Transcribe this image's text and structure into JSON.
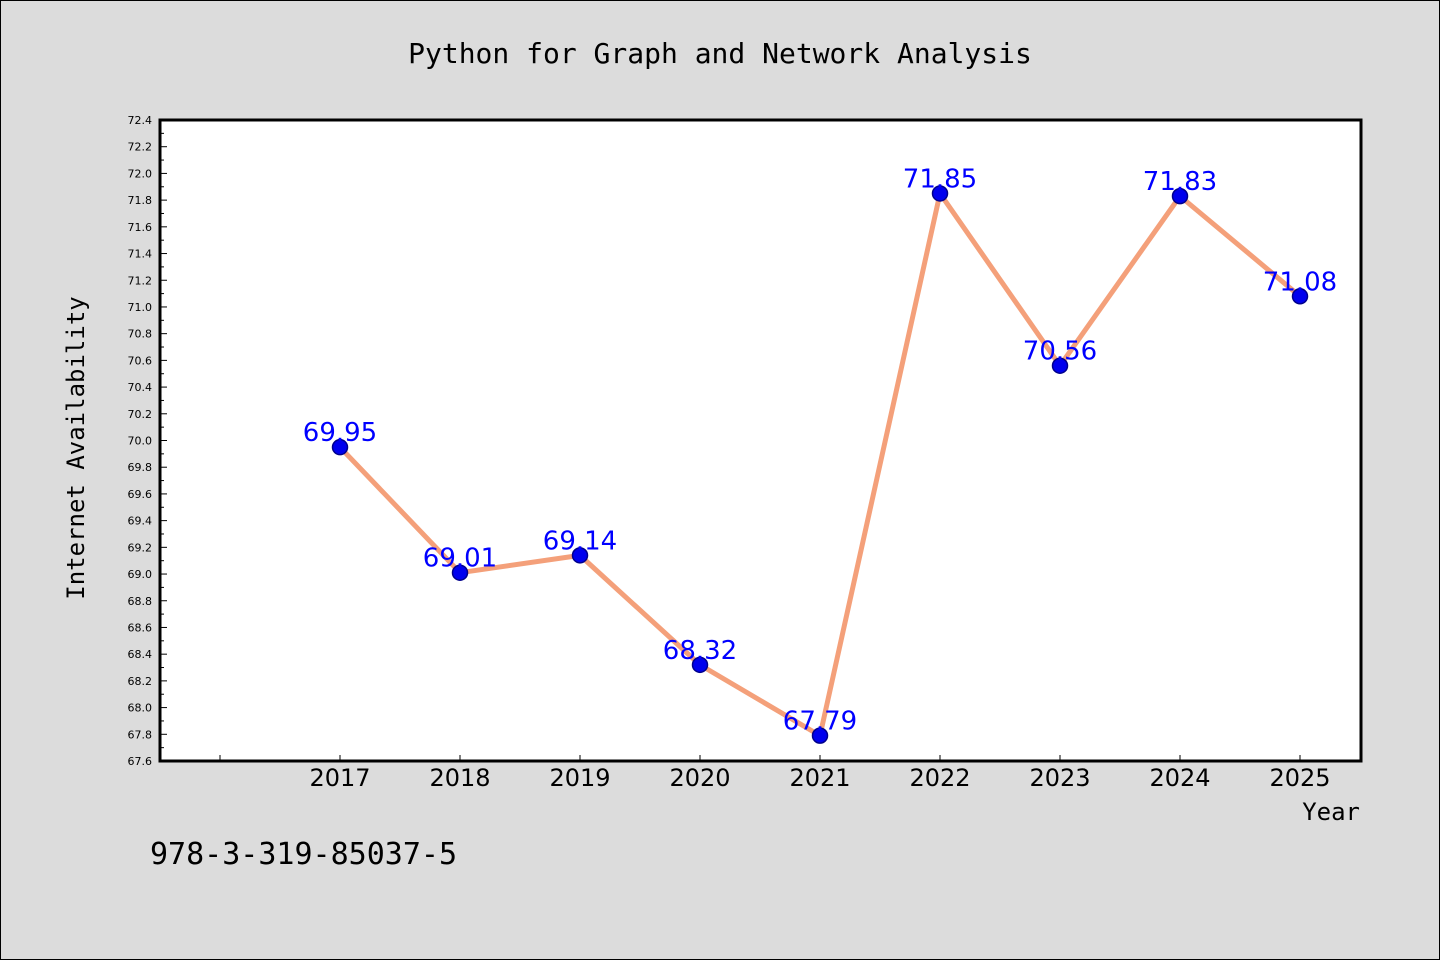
{
  "chart_data": {
    "type": "line",
    "title": "Python for Graph and Network Analysis",
    "xlabel": "Year",
    "ylabel": "Internet Availability",
    "categories": [
      "2017",
      "2018",
      "2019",
      "2020",
      "2021",
      "2022",
      "2023",
      "2024",
      "2025"
    ],
    "series": [
      {
        "values": [
          69.95,
          69.01,
          69.14,
          68.32,
          67.79,
          71.85,
          70.56,
          71.83,
          71.08
        ],
        "data_labels": [
          "69.95",
          "69.01",
          "69.14",
          "68.32",
          "67.79",
          "71.85",
          "70.56",
          "71.83",
          "71.08"
        ]
      }
    ],
    "ylim": [
      67.6,
      72.4
    ],
    "y_ticks": [
      "67.6",
      "67.8",
      "68.0",
      "68.2",
      "68.4",
      "68.6",
      "68.8",
      "69.0",
      "69.2",
      "69.4",
      "69.6",
      "69.8",
      "70.0",
      "70.2",
      "70.4",
      "70.6",
      "70.8",
      "71.0",
      "71.2",
      "71.4",
      "71.6",
      "71.8",
      "72.0",
      "72.2",
      "72.4"
    ],
    "grid": false,
    "colors": {
      "line": "#f4a07a",
      "marker": "#0000ee",
      "marker_edge": "#00008b",
      "label": "#0000ff",
      "background": "#dcdcdc",
      "plot_background": "#ffffff"
    }
  },
  "footer_text": "978-3-319-85037-5"
}
